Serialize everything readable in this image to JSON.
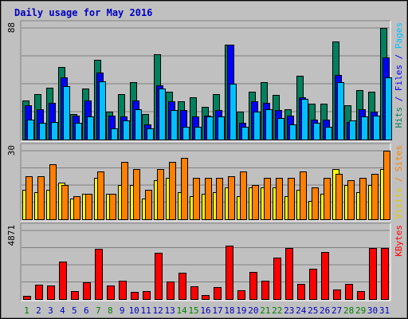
{
  "chart_data": {
    "type": "bar",
    "title": "Daily usage for May 2016",
    "categories": [
      "1",
      "2",
      "3",
      "4",
      "5",
      "6",
      "7",
      "8",
      "9",
      "10",
      "11",
      "12",
      "13",
      "14",
      "15",
      "16",
      "17",
      "18",
      "19",
      "20",
      "21",
      "22",
      "23",
      "24",
      "25",
      "26",
      "27",
      "28",
      "29",
      "30",
      "31"
    ],
    "weekend_days": [
      "1",
      "7",
      "8",
      "14",
      "15",
      "21",
      "22",
      "28",
      "29"
    ],
    "panels": [
      {
        "id": "hits",
        "ymax": 88,
        "ymax_label": "88",
        "legend": [
          {
            "label": "Hits",
            "color": "#00805C"
          },
          {
            "label": " / ",
            "color": "#0000FF"
          },
          {
            "label": "Files",
            "color": "#0000FF"
          },
          {
            "label": " / ",
            "color": "#0000FF"
          },
          {
            "label": "Pages",
            "color": "#00C0FF"
          }
        ],
        "series": [
          {
            "name": "Hits",
            "color": "#00805C",
            "values": [
              31,
              36,
              41,
              57,
              20,
              40,
              63,
              22,
              36,
              45,
              20,
              67,
              38,
              30,
              33,
              26,
              36,
              75,
              22,
              38,
              45,
              35,
              24,
              50,
              28,
              28,
              77,
              27,
              39,
              38,
              88
            ]
          },
          {
            "name": "Files",
            "color": "#0000FF",
            "values": [
              27,
              24,
              29,
              49,
              19,
              31,
              53,
              19,
              18,
              31,
              12,
              43,
              30,
              23,
              18,
              19,
              23,
              75,
              13,
              30,
              29,
              23,
              19,
              33,
              16,
              16,
              51,
              14,
              24,
              22,
              65
            ]
          },
          {
            "name": "Pages",
            "color": "#00C0FF",
            "values": [
              16,
              13,
              14,
              42,
              13,
              18,
              46,
              9,
              15,
              24,
              9,
              40,
              23,
              10,
              10,
              18,
              18,
              44,
              10,
              22,
              24,
              17,
              12,
              32,
              13,
              10,
              45,
              15,
              18,
              19,
              49
            ]
          }
        ]
      },
      {
        "id": "visits",
        "ymax": 30,
        "ymax_label": "30",
        "legend": [
          {
            "label": "Visits",
            "color": "#E8C800"
          },
          {
            "label": " / ",
            "color": "#FF8000"
          },
          {
            "label": "Sites",
            "color": "#FF8000"
          }
        ],
        "series": [
          {
            "name": "Visits",
            "color": "#FFFF00",
            "values": [
              13,
              12,
              13,
              16,
              9,
              11,
              18,
              11,
              15,
              15,
              9,
              17,
              18,
              12,
              10,
              11,
              12,
              14,
              10,
              14,
              14,
              14,
              10,
              13,
              8,
              11,
              22,
              15,
              12,
              15,
              22
            ]
          },
          {
            "name": "Sites",
            "color": "#FF8000",
            "values": [
              19,
              19,
              24,
              15,
              10,
              11,
              21,
              11,
              25,
              22,
              13,
              22,
              25,
              27,
              18,
              18,
              18,
              19,
              21,
              15,
              18,
              18,
              18,
              21,
              14,
              18,
              20,
              17,
              18,
              20,
              30
            ]
          }
        ]
      },
      {
        "id": "kbytes",
        "ymax": 4871,
        "ymax_label": "4871",
        "legend": [
          {
            "label": "KBytes",
            "color": "#FF0000"
          }
        ],
        "series": [
          {
            "name": "KBytes",
            "color": "#FF0000",
            "values": [
              220,
              1010,
              980,
              2680,
              570,
              1200,
              3550,
              990,
              1320,
              510,
              570,
              3260,
              1250,
              1890,
              880,
              280,
              850,
              3800,
              640,
              1900,
              1310,
              2950,
              3620,
              1050,
              2180,
              3350,
              700,
              1050,
              570,
              3650,
              3650
            ]
          }
        ]
      }
    ],
    "colors": {
      "background": "#C0C0C0",
      "panel_background": "#C0C0C0",
      "title": "#0000C0",
      "grid": "#808080",
      "weekday_label": "#0000C0",
      "weekend_label": "#008000"
    }
  }
}
